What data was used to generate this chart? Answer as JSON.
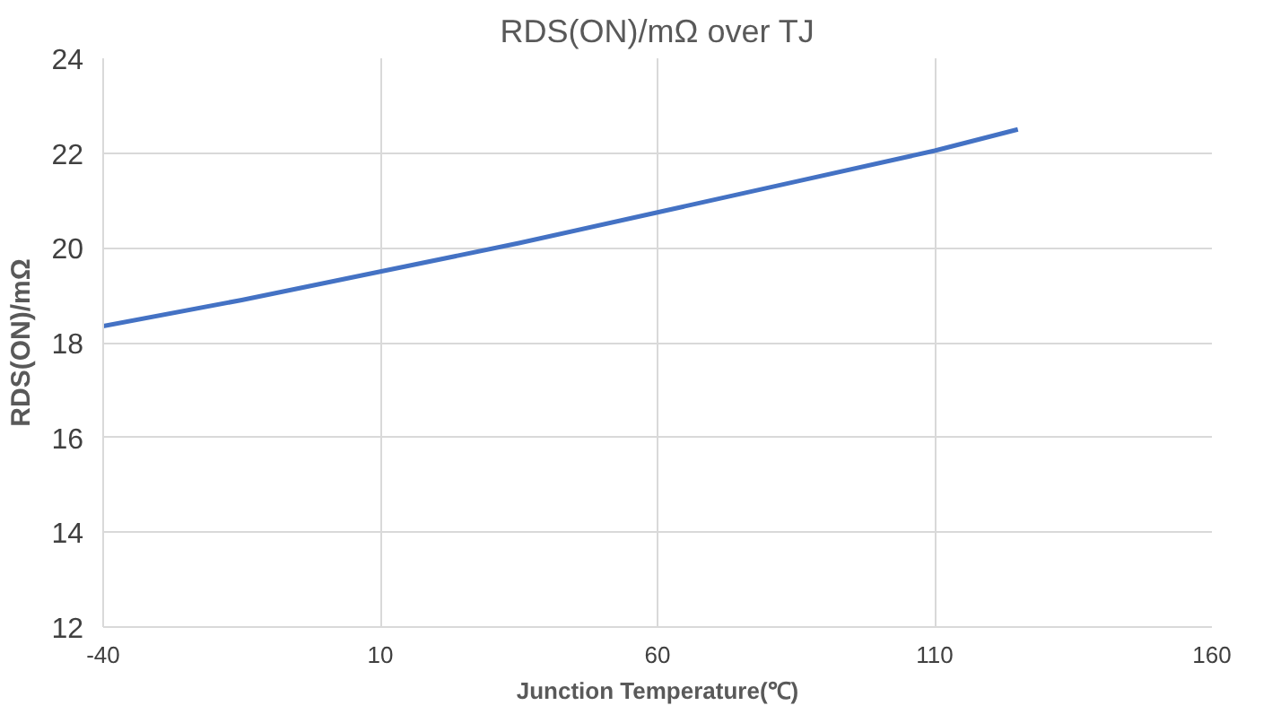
{
  "chart_data": {
    "type": "line",
    "title": "RDS(ON)/mΩ over TJ",
    "xlabel": "Junction Temperature(℃)",
    "ylabel": "RDS(ON)/mΩ",
    "x": [
      -40,
      -15,
      10,
      35,
      60,
      85,
      110,
      125
    ],
    "series": [
      {
        "color": "#4472c4",
        "values": [
          18.35,
          18.9,
          19.5,
          20.1,
          20.75,
          21.4,
          22.05,
          22.5
        ]
      }
    ],
    "xlim": [
      -40,
      160
    ],
    "xticks": [
      -40,
      10,
      60,
      110,
      160
    ],
    "ylim": [
      12,
      24
    ],
    "yticks": [
      12,
      14,
      16,
      18,
      20,
      22,
      24
    ],
    "grid": true,
    "marker": "none",
    "line_style": "solid"
  }
}
